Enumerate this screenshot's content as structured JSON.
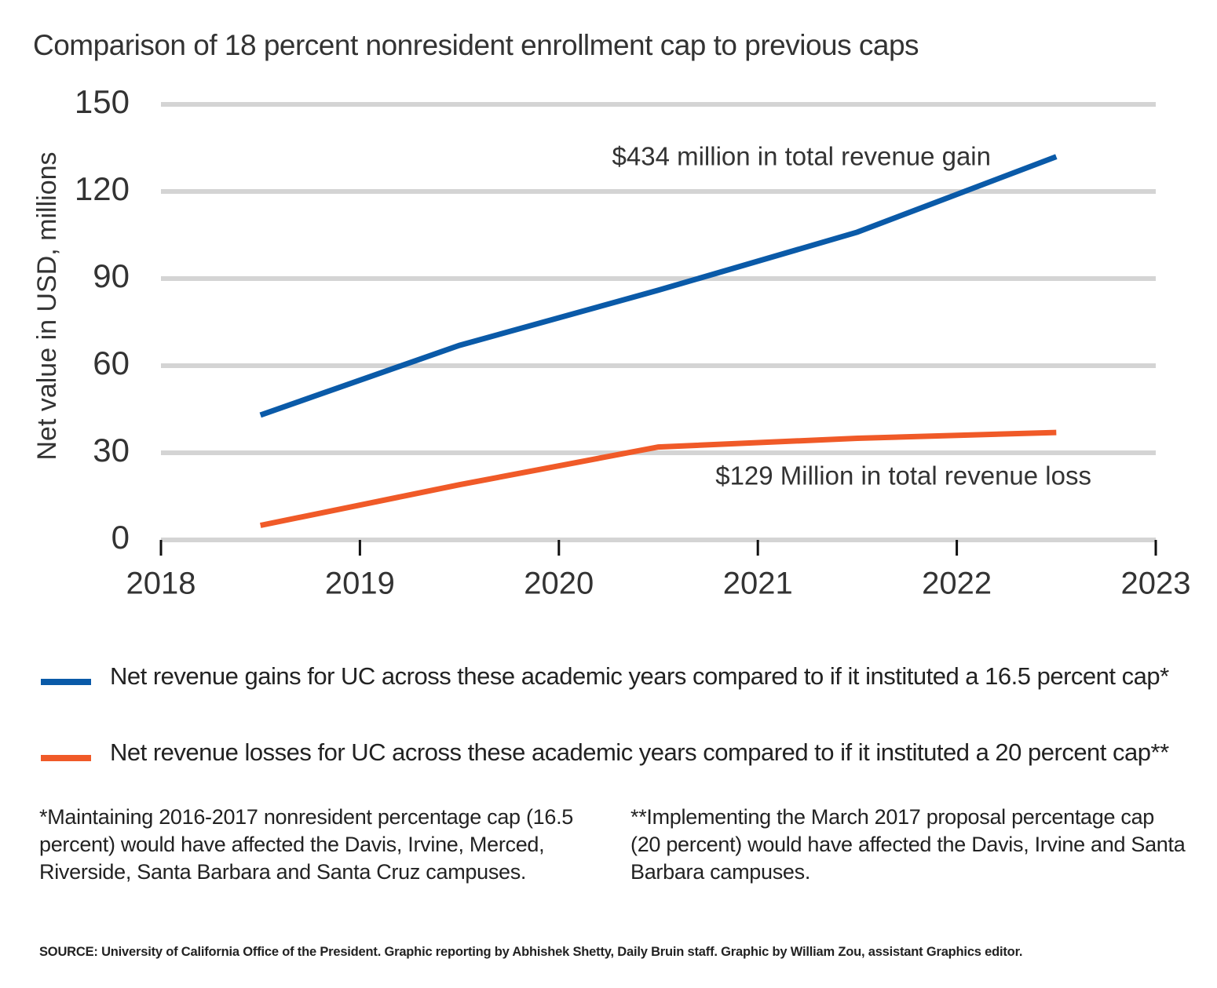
{
  "chart_data": {
    "type": "line",
    "title": "Comparison of 18 percent nonresident enrollment cap to previous caps",
    "y_label": "Net value in USD, millions",
    "x": [
      2018.5,
      2019.5,
      2020.5,
      2021.5,
      2022.5
    ],
    "xlim": [
      2018,
      2023
    ],
    "xticks": [
      2018,
      2019,
      2020,
      2021,
      2022,
      2023
    ],
    "ylim": [
      0,
      150
    ],
    "yticks": [
      0,
      30,
      60,
      90,
      120,
      150
    ],
    "grid": true,
    "series": [
      {
        "name": "Net revenue gains for UC across these academic years compared to if it instituted a 16.5 percent cap*",
        "color": "#0a5aa8",
        "values": [
          43,
          67,
          86,
          106,
          132
        ]
      },
      {
        "name": "Net revenue losses for UC across these academic years compared to if it instituted a 20 percent cap**",
        "color": "#f05a28",
        "values": [
          5,
          19,
          32,
          35,
          37
        ]
      }
    ],
    "annotations": [
      {
        "text": "$434 million in total revenue gain",
        "color": "#0a5aa8"
      },
      {
        "text": "$129 Million in total revenue loss",
        "color": "#e8312f"
      }
    ],
    "footnotes": [
      "*Maintaining 2016-2017 nonresident percentage cap (16.5 percent) would have affected the Davis, Irvine, Merced, Riverside, Santa Barbara and Santa Cruz campuses.",
      "**Implementing the March 2017 proposal percentage cap (20 percent) would have affected the Davis, Irvine and Santa Barbara campuses."
    ],
    "source": "SOURCE: University of California Office of the President. Graphic reporting by Abhishek Shetty, Daily Bruin staff. Graphic by William Zou, assistant Graphics editor."
  }
}
